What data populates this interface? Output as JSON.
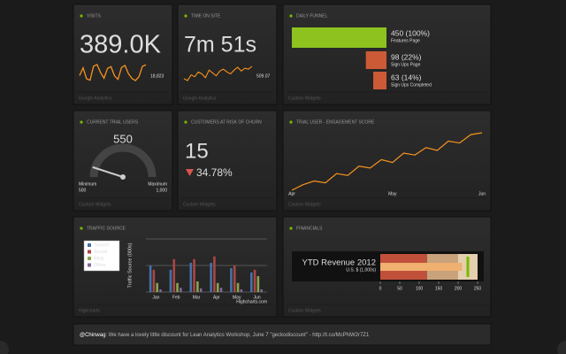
{
  "widgets": {
    "visits": {
      "title": "VISITS",
      "value": "389.0K",
      "sparkline": [
        15200,
        17800,
        14100,
        13600,
        18400,
        18900,
        16200,
        14300,
        17600,
        18200,
        15100,
        13900,
        17900,
        18600,
        15800,
        14200,
        13500,
        14800,
        18300,
        18823
      ],
      "last_label": "18,823",
      "source": "Google Analytics"
    },
    "time_on_site": {
      "title": "TIME ON SITE",
      "value": "7m 51s",
      "sparkline": [
        380,
        360,
        420,
        400,
        450,
        430,
        390,
        470,
        440,
        410,
        460,
        480,
        450,
        430,
        470,
        500,
        460,
        490,
        480,
        509.07
      ],
      "last_label": "509.07",
      "source": "Google Analytics"
    },
    "daily_funnel": {
      "title": "DAILY FUNNEL",
      "steps": [
        {
          "value": 450,
          "label": "450 (100%)",
          "page": "Features Page"
        },
        {
          "value": 98,
          "label": "98 (22%)",
          "page": "Sign Ups Page"
        },
        {
          "value": 63,
          "label": "63 (14%)",
          "page": "Sign Ups Completed"
        }
      ],
      "source": "Custom Widgets"
    },
    "trial_users": {
      "title": "CURRENT TRIAL USERS",
      "value": 550,
      "min_label": "Minimum",
      "min": 500,
      "max_label": "Maximum",
      "max": {
        "value": 1000,
        "label": "1,000"
      },
      "source": "Custom Widgets"
    },
    "churn": {
      "title": "CUSTOMERS AT RISK OF CHURN",
      "value": 15,
      "change": "34.78%",
      "source": "Custom Widgets"
    },
    "engagement": {
      "title": "TRIAL USER - ENGAGEMENT SCORE",
      "x_labels": [
        "Apr",
        "May",
        "Jun"
      ],
      "values": [
        12,
        18,
        22,
        20,
        30,
        28,
        38,
        36,
        45,
        42,
        52,
        50,
        58,
        55,
        65,
        63,
        72,
        74
      ],
      "source": "Custom Widgets"
    },
    "traffic": {
      "title": "TRAFFIC SOURCE",
      "y_label": "Traffic Source (000s)",
      "categories": [
        "Jan",
        "Feb",
        "Mar",
        "Apr",
        "May",
        "Jun"
      ],
      "series": [
        {
          "name": "Search",
          "color": "#4572a7",
          "values": [
            50,
            42,
            55,
            55,
            45,
            37
          ]
        },
        {
          "name": "Social",
          "color": "#aa4643",
          "values": [
            42,
            62,
            62,
            67,
            50,
            42
          ]
        },
        {
          "name": "Blog",
          "color": "#89a54e",
          "values": [
            17,
            17,
            20,
            17,
            17,
            30
          ]
        },
        {
          "name": "Other",
          "color": "#80699b",
          "values": [
            5,
            8,
            7,
            8,
            5,
            5
          ]
        }
      ],
      "ylim": [
        0,
        100
      ],
      "yticks": [
        0,
        50,
        100
      ],
      "credit": "Highcharts.com",
      "source": "Highcharts"
    },
    "financials": {
      "title": "FINANCIALS",
      "chart_title": "YTD Revenue 2012",
      "subtitle": "U.S. $ (1,000s)",
      "ranges": [
        120,
        200,
        250
      ],
      "value": 210,
      "target": 225,
      "xlim": [
        0,
        250
      ],
      "xticks": [
        0,
        50,
        100,
        150,
        200,
        250
      ],
      "source": "Custom Widgets"
    }
  },
  "tweet": {
    "user": "@Chinwag",
    "text": ": We have a lovely little discount for Lean Analytics Workshop, June 7 \"geckodiscount\" - http://t.co/McPNW2r7Z1"
  }
}
